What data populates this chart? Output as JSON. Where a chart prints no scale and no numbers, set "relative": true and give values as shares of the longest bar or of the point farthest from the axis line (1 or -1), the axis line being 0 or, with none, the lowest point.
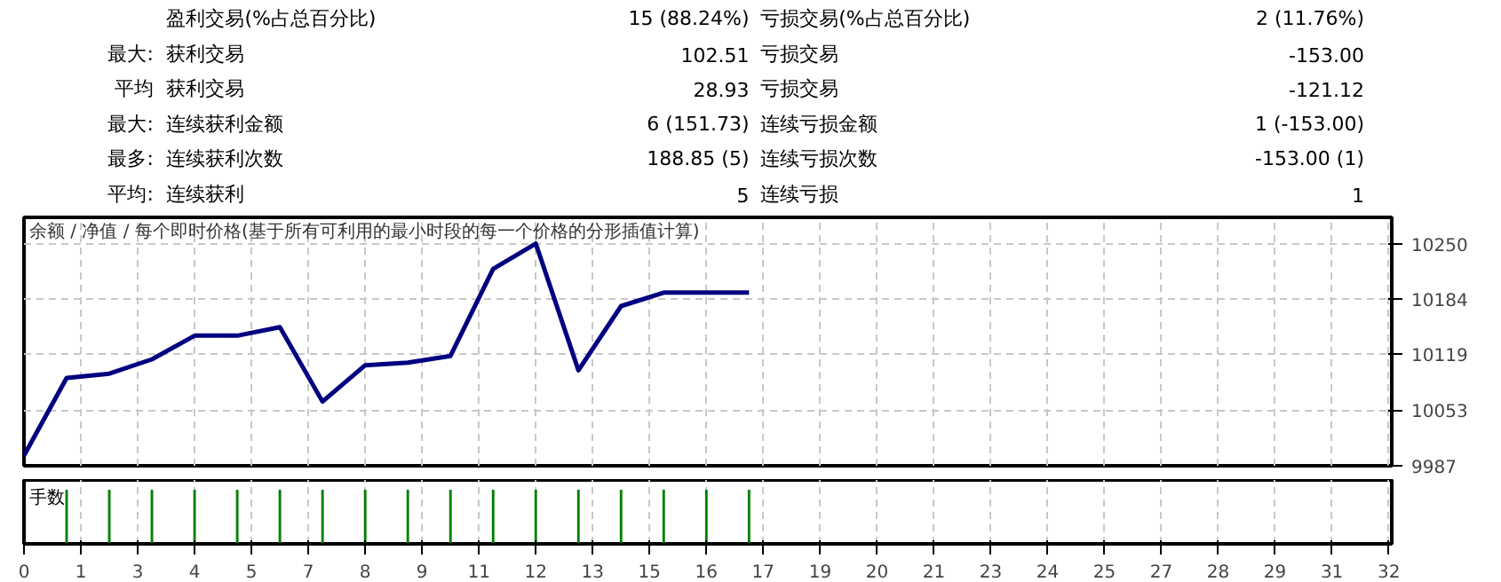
{
  "chart_data": [
    {
      "type": "other",
      "annotations": [
        "盈利交易(%占总百分比)",
        "15 (88.24%)",
        "亏损交易(%占总百分比)",
        "2 (11.76%)",
        "最大:",
        "获利交易",
        "102.51",
        "亏损交易",
        "-153.00",
        "平均",
        "获利交易",
        "28.93",
        "亏损交易",
        "-121.12",
        "最大:",
        "连续获利金额",
        "6 (151.73)",
        "连续亏损金额",
        "1 (-153.00)",
        "最多:",
        "连续获利次数",
        "188.85 (5)",
        "连续亏损次数",
        "-153.00 (1)",
        "平均:",
        "连续获利",
        "5",
        "连续亏损",
        "1"
      ]
    },
    {
      "type": "line",
      "title": "余额 / 净值 / 每个即时价格(基于所有可利用的最小时段的每一个价格的分形插值计算)",
      "x": [
        0,
        1,
        2,
        3,
        4,
        5,
        6,
        7,
        8,
        9,
        10,
        11,
        12,
        13,
        14,
        15,
        16,
        17
      ],
      "series": [
        {
          "color": "#000080",
          "values": [
            9999,
            10091,
            10096,
            10113,
            10141,
            10141,
            10151,
            10063,
            10106,
            10109,
            10117,
            10220,
            10250,
            10100,
            10176,
            10192,
            10192,
            10192
          ]
        }
      ],
      "xlim": [
        0,
        32.07
      ],
      "xticks": [
        {
          "value": 0,
          "label": null
        },
        {
          "value": 1.333,
          "label": null
        },
        {
          "value": 2.667,
          "label": null
        },
        {
          "value": 4,
          "label": null
        },
        {
          "value": 5.333,
          "label": null
        },
        {
          "value": 6.667,
          "label": null
        },
        {
          "value": 8,
          "label": null
        },
        {
          "value": 9.333,
          "label": null
        },
        {
          "value": 10.667,
          "label": null
        },
        {
          "value": 12,
          "label": null
        },
        {
          "value": 13.333,
          "label": null
        },
        {
          "value": 14.667,
          "label": null
        },
        {
          "value": 16,
          "label": null
        },
        {
          "value": 17.333,
          "label": null
        },
        {
          "value": 18.667,
          "label": null
        },
        {
          "value": 20,
          "label": null
        },
        {
          "value": 21.333,
          "label": null
        },
        {
          "value": 22.667,
          "label": null
        },
        {
          "value": 24,
          "label": null
        },
        {
          "value": 25.333,
          "label": null
        },
        {
          "value": 26.667,
          "label": null
        },
        {
          "value": 28,
          "label": null
        },
        {
          "value": 29.333,
          "label": null
        },
        {
          "value": 30.667,
          "label": null
        },
        {
          "value": 32,
          "label": null
        }
      ],
      "ylim": [
        9987,
        10281
      ],
      "yticks": [
        9987,
        10053,
        10119,
        10184,
        10250
      ],
      "grid": true,
      "tick_labels": "y",
      "line_style": "solid",
      "marker": "none"
    },
    {
      "type": "bar",
      "title": "手数",
      "relative": true,
      "x": [
        1,
        2,
        3,
        4,
        5,
        6,
        7,
        8,
        9,
        10,
        11,
        12,
        13,
        14,
        15,
        16,
        17
      ],
      "values": [
        1,
        1,
        1,
        1,
        1,
        1,
        1,
        1,
        1,
        1,
        1,
        1,
        1,
        1,
        1,
        1,
        1
      ],
      "color": "#008000",
      "xlim": [
        0,
        32.07
      ],
      "xticks": [
        {
          "value": 0,
          "label": "0"
        },
        {
          "value": 1.333,
          "label": "1"
        },
        {
          "value": 2.667,
          "label": "3"
        },
        {
          "value": 4,
          "label": "4"
        },
        {
          "value": 5.333,
          "label": "5"
        },
        {
          "value": 6.667,
          "label": "7"
        },
        {
          "value": 8,
          "label": "8"
        },
        {
          "value": 9.333,
          "label": "9"
        },
        {
          "value": 10.667,
          "label": "11"
        },
        {
          "value": 12,
          "label": "12"
        },
        {
          "value": 13.333,
          "label": "13"
        },
        {
          "value": 14.667,
          "label": "15"
        },
        {
          "value": 16,
          "label": "16"
        },
        {
          "value": 17.333,
          "label": "17"
        },
        {
          "value": 18.667,
          "label": "19"
        },
        {
          "value": 20,
          "label": "20"
        },
        {
          "value": 21.333,
          "label": "21"
        },
        {
          "value": 22.667,
          "label": "23"
        },
        {
          "value": 24,
          "label": "24"
        },
        {
          "value": 25.333,
          "label": "25"
        },
        {
          "value": 26.667,
          "label": "27"
        },
        {
          "value": 28,
          "label": "28"
        },
        {
          "value": 29.333,
          "label": "29"
        },
        {
          "value": 30.667,
          "label": "31"
        },
        {
          "value": 32,
          "label": "32"
        }
      ],
      "grid": true,
      "tick_labels": "x"
    }
  ]
}
